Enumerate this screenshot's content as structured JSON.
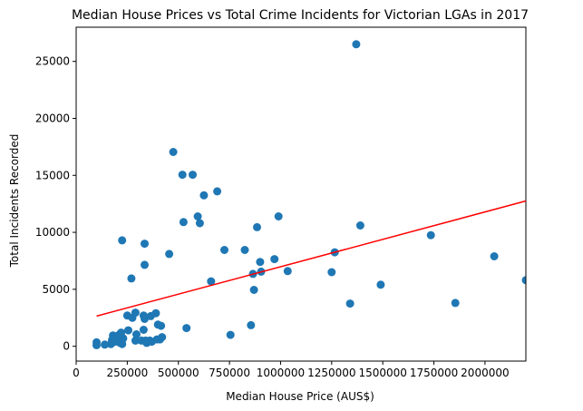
{
  "chart_data": {
    "type": "scatter",
    "title": "Median House Prices vs Total Crime Incidents for Victorian LGAs in 2017",
    "xlabel": "Median House Price (AUS$)",
    "ylabel": "Total Incidents Recorded",
    "xlim": [
      0,
      2200000
    ],
    "ylim": [
      -1300,
      28000
    ],
    "x_ticks": [
      0,
      250000,
      500000,
      750000,
      1000000,
      1250000,
      1500000,
      1750000,
      2000000
    ],
    "x_tick_labels": [
      "0",
      "250000",
      "500000",
      "750000",
      "1000000",
      "1250000",
      "1500000",
      "1750000",
      "2000000"
    ],
    "y_ticks": [
      0,
      5000,
      10000,
      15000,
      20000,
      25000
    ],
    "y_tick_labels": [
      "0",
      "5000",
      "10000",
      "15000",
      "20000",
      "25000"
    ],
    "grid": false,
    "point_color": "#1f77b4",
    "trendline_color": "#ff0000",
    "trendline": {
      "x": [
        100000,
        2200000
      ],
      "y": [
        2650,
        12750
      ]
    },
    "points": [
      [
        100000,
        350
      ],
      [
        100000,
        100
      ],
      [
        140000,
        150
      ],
      [
        170000,
        200
      ],
      [
        175000,
        550
      ],
      [
        180000,
        950
      ],
      [
        190000,
        400
      ],
      [
        200000,
        700
      ],
      [
        210000,
        1000
      ],
      [
        215000,
        300
      ],
      [
        220000,
        1200
      ],
      [
        225000,
        200
      ],
      [
        225000,
        9300
      ],
      [
        230000,
        700
      ],
      [
        250000,
        2700
      ],
      [
        255000,
        1400
      ],
      [
        270000,
        5950
      ],
      [
        275000,
        2500
      ],
      [
        290000,
        500
      ],
      [
        290000,
        2950
      ],
      [
        295000,
        1050
      ],
      [
        320000,
        500
      ],
      [
        330000,
        2700
      ],
      [
        330000,
        1450
      ],
      [
        335000,
        2400
      ],
      [
        335000,
        7150
      ],
      [
        335000,
        9000
      ],
      [
        340000,
        500
      ],
      [
        345000,
        300
      ],
      [
        360000,
        500
      ],
      [
        365000,
        2650
      ],
      [
        370000,
        400
      ],
      [
        390000,
        2900
      ],
      [
        395000,
        600
      ],
      [
        400000,
        1900
      ],
      [
        410000,
        600
      ],
      [
        415000,
        1800
      ],
      [
        420000,
        800
      ],
      [
        455000,
        8100
      ],
      [
        475000,
        17050
      ],
      [
        520000,
        15050
      ],
      [
        525000,
        10900
      ],
      [
        540000,
        1600
      ],
      [
        570000,
        15050
      ],
      [
        595000,
        11400
      ],
      [
        605000,
        10800
      ],
      [
        625000,
        13250
      ],
      [
        660000,
        5700
      ],
      [
        690000,
        13600
      ],
      [
        725000,
        8450
      ],
      [
        755000,
        1000
      ],
      [
        825000,
        8450
      ],
      [
        855000,
        1850
      ],
      [
        865000,
        6350
      ],
      [
        870000,
        4950
      ],
      [
        885000,
        10450
      ],
      [
        900000,
        7400
      ],
      [
        905000,
        6550
      ],
      [
        970000,
        7650
      ],
      [
        990000,
        11400
      ],
      [
        1035000,
        6600
      ],
      [
        1250000,
        6500
      ],
      [
        1265000,
        8250
      ],
      [
        1340000,
        3750
      ],
      [
        1370000,
        26500
      ],
      [
        1390000,
        10600
      ],
      [
        1490000,
        5400
      ],
      [
        1735000,
        9750
      ],
      [
        1855000,
        3800
      ],
      [
        2045000,
        7900
      ],
      [
        2200000,
        5800
      ]
    ]
  }
}
